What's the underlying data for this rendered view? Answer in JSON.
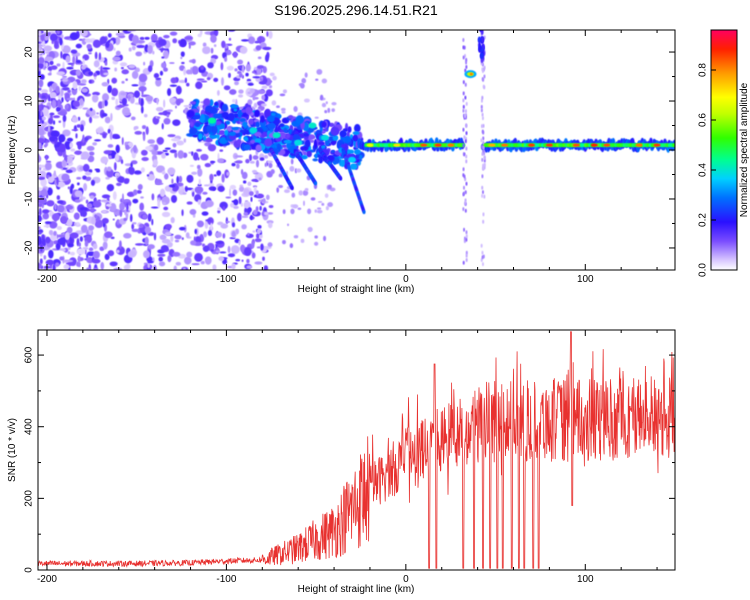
{
  "title": "S196.2025.296.14.51.R21",
  "chart_data": [
    {
      "type": "heatmap",
      "title": "S196.2025.296.14.51.R21",
      "xlabel": "Height of straight line (km)",
      "ylabel": "Frequency (Hz)",
      "xlim": [
        -205,
        150
      ],
      "ylim": [
        -24.5,
        24.5
      ],
      "xticks": [
        -200,
        -100,
        0,
        100
      ],
      "yticks": [
        -20,
        -10,
        0,
        10,
        20
      ],
      "colorbar": {
        "label": "Normalized spectral amplitude",
        "range": [
          0,
          0.96
        ],
        "ticks": [
          "0.0",
          "0.2",
          "0.4",
          "0.6",
          "0.8"
        ]
      },
      "features": [
        {
          "name": "diffuse noise",
          "x_range": [
            -205,
            -80
          ],
          "freq_range": [
            -24,
            24
          ],
          "amplitude": 0.15
        },
        {
          "name": "descending band",
          "x": [
            -115,
            -90,
            -70,
            -55,
            -40,
            -30
          ],
          "freq": [
            6,
            5,
            3,
            2,
            1,
            0.5
          ],
          "amplitude": 0.3
        },
        {
          "name": "dispersive branches",
          "x": [
            -65,
            -45,
            -33
          ],
          "freq_min": [
            -8,
            -6,
            -13
          ]
        },
        {
          "name": "steady line",
          "x_range": [
            -25,
            150
          ],
          "freq": 1,
          "amplitude": 0.9,
          "gap": [
            32,
            43
          ]
        },
        {
          "name": "isolated burst",
          "x": 36,
          "freq": 15.5,
          "amplitude": 0.8
        }
      ]
    },
    {
      "type": "line",
      "xlabel": "Height of straight line (km)",
      "ylabel": "SNR (10 * v/v)",
      "xlim": [
        -205,
        150
      ],
      "ylim": [
        0,
        670
      ],
      "xticks": [
        -200,
        -100,
        0,
        100
      ],
      "yticks": [
        0,
        200,
        400,
        600
      ],
      "series": [
        {
          "name": "SNR",
          "color": "#e8312f",
          "x": [
            -205,
            -180,
            -150,
            -120,
            -100,
            -80,
            -60,
            -40,
            -20,
            0,
            20,
            40,
            60,
            80,
            100,
            120,
            150
          ],
          "y": [
            18,
            18,
            18,
            20,
            25,
            28,
            60,
            110,
            230,
            310,
            360,
            410,
            415,
            420,
            415,
            425,
            430
          ],
          "notes": "noisy trace with spikes up to ~665 near x=92 and deep dropouts to ~0 between x=10 and x=75"
        }
      ]
    }
  ]
}
